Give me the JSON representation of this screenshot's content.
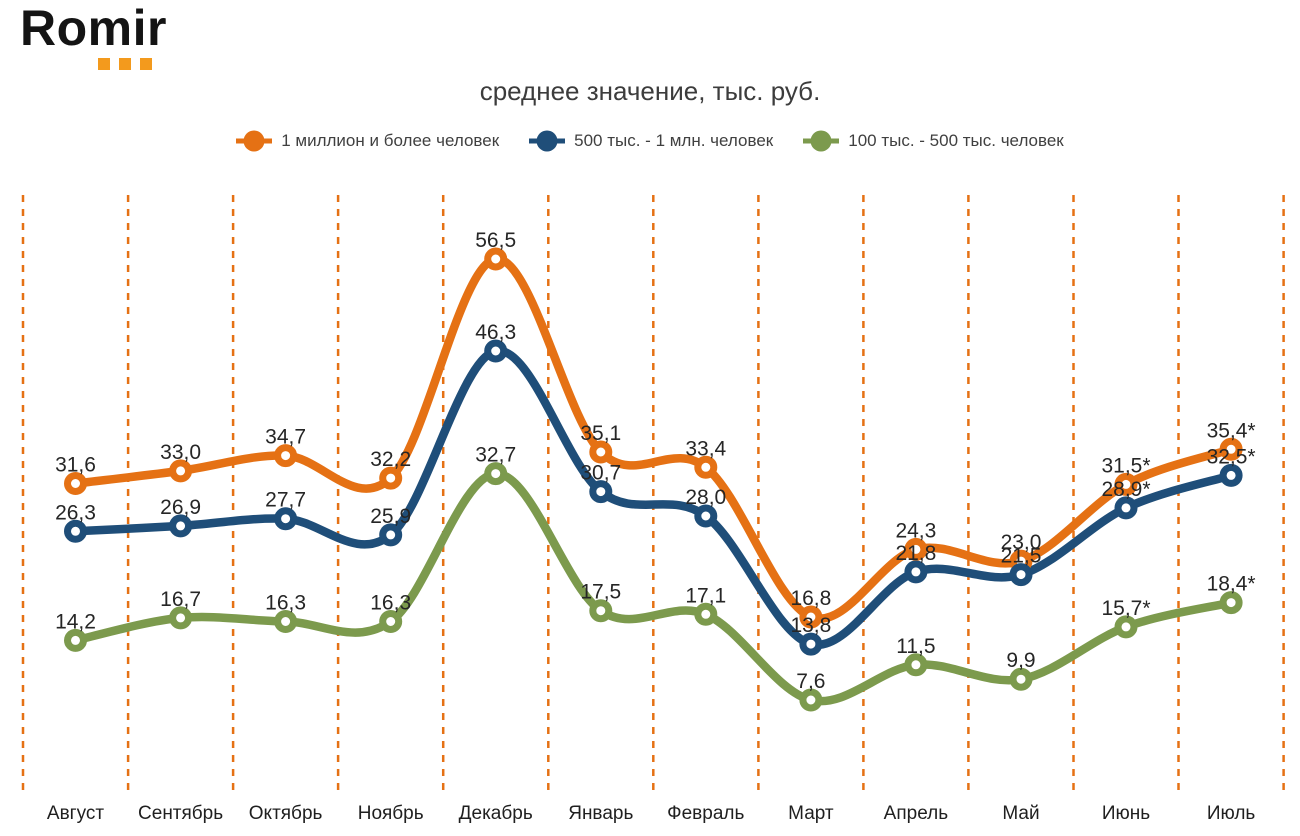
{
  "logo": {
    "text": "Romir",
    "accent_color": "#F39A1D"
  },
  "title": "среднее значение, тыс. руб.",
  "legend": [
    {
      "label": "1 миллион и более человек",
      "color": "#E57114"
    },
    {
      "label": "500 тыс. - 1 млн. человек",
      "color": "#1F4E79"
    },
    {
      "label": "100 тыс. - 500 тыс. человек",
      "color": "#7C9A4D"
    }
  ],
  "chart_data": {
    "type": "line",
    "title": "среднее значение, тыс. руб.",
    "xlabel": "",
    "ylabel": "",
    "ylim": [
      0,
      64
    ],
    "grid": "vertical-dashed-orange",
    "gridline_color": "#E57114",
    "legend_position": "top",
    "line_style": "smooth",
    "marker": "open-circle",
    "categories": [
      "Август",
      "Сентябрь",
      "Октябрь",
      "Ноябрь",
      "Декабрь",
      "Январь",
      "Февраль",
      "Март",
      "Апрель",
      "Май",
      "Июнь",
      "Июль"
    ],
    "series": [
      {
        "name": "1 миллион и более человек",
        "color": "#E57114",
        "values": [
          31.6,
          33.0,
          34.7,
          32.2,
          56.5,
          35.1,
          33.4,
          16.8,
          24.3,
          23.0,
          31.5,
          35.4
        ],
        "labels": [
          "31,6",
          "33,0",
          "34,7",
          "32,2",
          "56,5",
          "35,1",
          "33,4",
          "16,8",
          "24,3",
          "23,0",
          "31,5*",
          "35,4*"
        ]
      },
      {
        "name": "500 тыс. - 1 млн. человек",
        "color": "#1F4E79",
        "values": [
          26.3,
          26.9,
          27.7,
          25.9,
          46.3,
          30.7,
          28.0,
          13.8,
          21.8,
          21.5,
          28.9,
          32.5
        ],
        "labels": [
          "26,3",
          "26,9",
          "27,7",
          "25,9",
          "46,3",
          "30,7",
          "28,0",
          "13,8",
          "21,8",
          "21,5",
          "28,9*",
          "32,5*"
        ]
      },
      {
        "name": "100 тыс. - 500 тыс. человек",
        "color": "#7C9A4D",
        "values": [
          14.2,
          16.7,
          16.3,
          16.3,
          32.7,
          17.5,
          17.1,
          7.6,
          11.5,
          9.9,
          15.7,
          18.4
        ],
        "labels": [
          "14,2",
          "16,7",
          "16,3",
          "16,3",
          "32,7",
          "17,5",
          "17,1",
          "7,6",
          "11,5",
          "9,9",
          "15,7*",
          "18,4*"
        ]
      }
    ]
  }
}
